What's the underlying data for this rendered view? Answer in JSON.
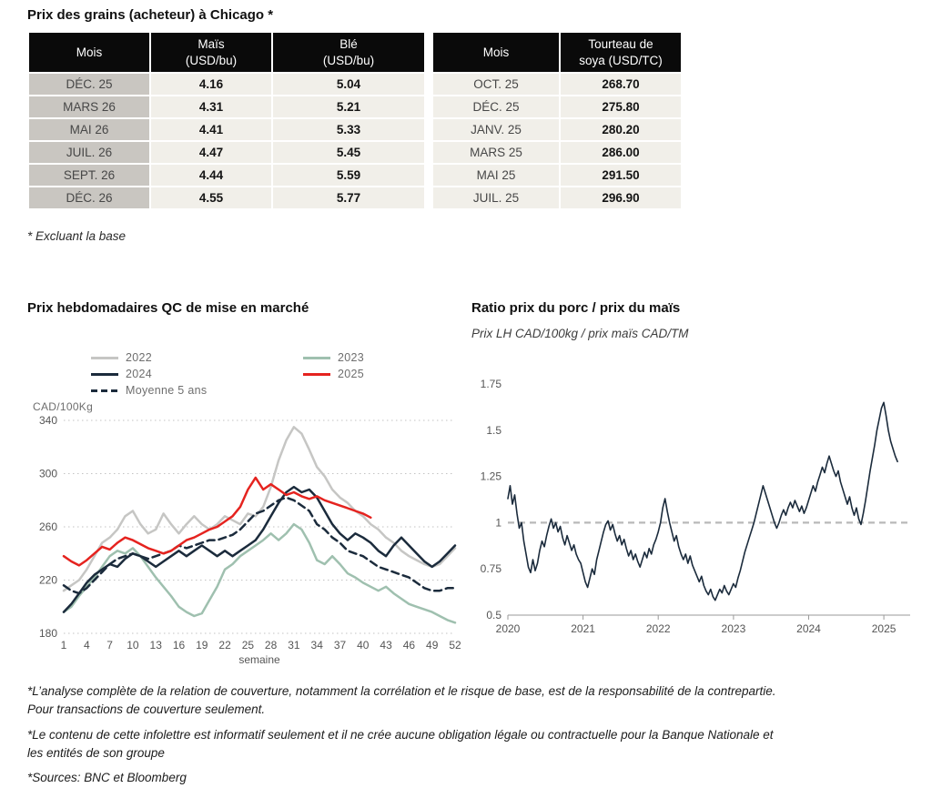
{
  "page": {
    "title": "Prix des grains (acheteur) à Chicago *",
    "table_note": "* Excluant la base",
    "footnotes": [
      "*L’analyse complète de la relation de couverture, notamment la corrélation et le risque de base, est de la responsabilité de la contrepartie. Pour transactions de couverture seulement.",
      "*Le contenu de cette infolettre est informatif seulement et il ne crée aucune obligation légale ou contractuelle pour la Banque Nationale et les entités de son groupe",
      "*Sources: BNC et Bloomberg"
    ]
  },
  "colors": {
    "header_bg": "#0a0a0a",
    "month_col_bg": "#c9c6c1",
    "cell_bg": "#f1efe9",
    "navy": "#1b2b3c",
    "red": "#e5231f",
    "gray_series": "#c6c6c4",
    "green_series": "#9fc0af",
    "reference_gray": "#b9b9b9"
  },
  "grains_table": {
    "headers": [
      {
        "lines": [
          "Mois"
        ]
      },
      {
        "lines": [
          "Maïs",
          "(USD/bu)"
        ]
      },
      {
        "lines": [
          "Blé",
          "(USD/bu)"
        ]
      },
      {
        "lines": [
          "Mois"
        ]
      },
      {
        "lines": [
          "Tourteau de",
          "soya (USD/TC)"
        ]
      }
    ],
    "rows": [
      [
        "DÉC. 25",
        "4.16",
        "5.04",
        "OCT. 25",
        "268.70"
      ],
      [
        "MARS 26",
        "4.31",
        "5.21",
        "DÉC. 25",
        "275.80"
      ],
      [
        "MAI 26",
        "4.41",
        "5.33",
        "JANV. 25",
        "280.20"
      ],
      [
        "JUIL. 26",
        "4.47",
        "5.45",
        "MARS 25",
        "286.00"
      ],
      [
        "SEPT. 26",
        "4.44",
        "5.59",
        "MAI 25",
        "291.50"
      ],
      [
        "DÉC. 26",
        "4.55",
        "5.77",
        "JUIL. 25",
        "296.90"
      ]
    ]
  },
  "chart_data": [
    {
      "type": "line",
      "title": "Prix hebdomadaires QC de mise en marché",
      "ylabel": "CAD/100Kg",
      "xlabel": "semaine",
      "ylim": [
        180,
        340
      ],
      "yticks": [
        180,
        220,
        260,
        300,
        340
      ],
      "xlim": [
        1,
        52
      ],
      "xticks": [
        1,
        4,
        7,
        10,
        13,
        16,
        19,
        22,
        25,
        28,
        31,
        34,
        37,
        40,
        43,
        46,
        49,
        52
      ],
      "grid": "dotted-horizontal",
      "legend_position": "top-left",
      "legend": [
        {
          "label": "2022",
          "color": "#c6c6c4",
          "dash": false
        },
        {
          "label": "2023",
          "color": "#9fc0af",
          "dash": false
        },
        {
          "label": "2024",
          "color": "#1b2b3c",
          "dash": false
        },
        {
          "label": "2025",
          "color": "#e5231f",
          "dash": false
        },
        {
          "label": "Moyenne 5 ans",
          "color": "#1b2b3c",
          "dash": true
        }
      ],
      "series": [
        {
          "name": "2022",
          "color": "#c6c6c4",
          "dash": false,
          "x_start": 1,
          "x_step": 1,
          "values": [
            212,
            216,
            220,
            228,
            238,
            248,
            252,
            258,
            268,
            272,
            262,
            255,
            258,
            270,
            262,
            255,
            262,
            268,
            262,
            258,
            262,
            268,
            265,
            262,
            270,
            268,
            275,
            290,
            310,
            325,
            335,
            330,
            318,
            305,
            298,
            288,
            282,
            278,
            272,
            268,
            262,
            258,
            252,
            248,
            242,
            238,
            235,
            232,
            230,
            232,
            238,
            244
          ]
        },
        {
          "name": "2023",
          "color": "#9fc0af",
          "dash": false,
          "x_start": 1,
          "x_step": 1,
          "values": [
            196,
            200,
            208,
            215,
            222,
            230,
            238,
            242,
            240,
            244,
            238,
            230,
            222,
            215,
            208,
            200,
            196,
            193,
            195,
            205,
            215,
            228,
            232,
            238,
            242,
            246,
            250,
            255,
            250,
            255,
            262,
            258,
            248,
            235,
            232,
            238,
            232,
            225,
            222,
            218,
            215,
            212,
            215,
            210,
            206,
            202,
            200,
            198,
            196,
            193,
            190,
            188
          ]
        },
        {
          "name": "Moyenne 5 ans",
          "color": "#1b2b3c",
          "dash": true,
          "x_start": 1,
          "x_step": 1,
          "values": [
            216,
            212,
            210,
            214,
            220,
            226,
            232,
            236,
            238,
            240,
            238,
            236,
            238,
            240,
            242,
            246,
            244,
            246,
            248,
            250,
            250,
            252,
            254,
            258,
            264,
            270,
            272,
            276,
            280,
            282,
            280,
            276,
            272,
            262,
            258,
            252,
            248,
            242,
            240,
            238,
            234,
            230,
            228,
            226,
            224,
            222,
            218,
            214,
            212,
            212,
            214,
            214
          ]
        },
        {
          "name": "2024",
          "color": "#1b2b3c",
          "dash": false,
          "x_start": 1,
          "x_step": 1,
          "values": [
            196,
            202,
            210,
            218,
            224,
            228,
            232,
            230,
            236,
            240,
            238,
            234,
            230,
            234,
            238,
            242,
            238,
            242,
            246,
            242,
            238,
            242,
            238,
            242,
            246,
            250,
            258,
            268,
            278,
            286,
            290,
            286,
            288,
            282,
            272,
            262,
            255,
            250,
            255,
            252,
            248,
            242,
            238,
            246,
            252,
            246,
            240,
            234,
            230,
            234,
            240,
            246
          ]
        },
        {
          "name": "2025",
          "color": "#e5231f",
          "dash": false,
          "x_start": 1,
          "x_step": 1,
          "values": [
            238,
            234,
            231,
            235,
            240,
            245,
            243,
            248,
            252,
            250,
            247,
            244,
            242,
            240,
            242,
            246,
            250,
            252,
            255,
            258,
            260,
            264,
            268,
            275,
            288,
            297,
            288,
            292,
            288,
            284,
            286,
            283,
            281,
            283,
            280,
            278,
            276,
            274,
            272,
            270,
            267
          ]
        }
      ]
    },
    {
      "type": "line",
      "title": "Ratio prix du porc / prix du maïs",
      "subtitle": "Prix LH CAD/100kg / prix maïs CAD/TM",
      "ylim": [
        0.5,
        1.75
      ],
      "yticks": [
        0.5,
        0.75,
        1,
        1.25,
        1.5,
        1.75
      ],
      "xlim": [
        2020,
        2025.35
      ],
      "xticks": [
        2020,
        2021,
        2022,
        2023,
        2024,
        2025
      ],
      "reference_line": 1,
      "legend_position": "none",
      "series": [
        {
          "name": "ratio porc/maïs",
          "color": "#1b2b3c",
          "dash": false,
          "width": 1.6,
          "x_start": 2020,
          "x_step": 0.0303,
          "values": [
            1.13,
            1.2,
            1.1,
            1.15,
            1.05,
            0.97,
            1.0,
            0.9,
            0.83,
            0.76,
            0.73,
            0.8,
            0.74,
            0.78,
            0.85,
            0.9,
            0.87,
            0.93,
            0.98,
            1.02,
            0.97,
            1.0,
            0.95,
            0.98,
            0.92,
            0.88,
            0.93,
            0.89,
            0.85,
            0.88,
            0.83,
            0.8,
            0.78,
            0.73,
            0.68,
            0.65,
            0.7,
            0.75,
            0.72,
            0.8,
            0.85,
            0.9,
            0.95,
            0.99,
            1.01,
            0.96,
            0.99,
            0.94,
            0.9,
            0.93,
            0.88,
            0.91,
            0.86,
            0.82,
            0.85,
            0.8,
            0.83,
            0.79,
            0.76,
            0.8,
            0.84,
            0.81,
            0.86,
            0.83,
            0.88,
            0.91,
            0.95,
            1.0,
            1.08,
            1.13,
            1.06,
            1.0,
            0.95,
            0.9,
            0.93,
            0.87,
            0.83,
            0.8,
            0.83,
            0.78,
            0.82,
            0.77,
            0.74,
            0.71,
            0.68,
            0.71,
            0.66,
            0.63,
            0.61,
            0.64,
            0.6,
            0.58,
            0.61,
            0.64,
            0.62,
            0.66,
            0.63,
            0.61,
            0.64,
            0.67,
            0.65,
            0.7,
            0.74,
            0.79,
            0.84,
            0.88,
            0.92,
            0.96,
            1.0,
            1.05,
            1.1,
            1.15,
            1.2,
            1.16,
            1.12,
            1.08,
            1.04,
            1.0,
            0.97,
            1.0,
            1.04,
            1.07,
            1.04,
            1.08,
            1.11,
            1.08,
            1.12,
            1.09,
            1.06,
            1.09,
            1.05,
            1.08,
            1.12,
            1.16,
            1.2,
            1.17,
            1.22,
            1.26,
            1.3,
            1.27,
            1.32,
            1.36,
            1.32,
            1.28,
            1.25,
            1.28,
            1.22,
            1.18,
            1.14,
            1.1,
            1.14,
            1.08,
            1.04,
            1.08,
            1.02,
            0.99,
            1.05,
            1.12,
            1.2,
            1.28,
            1.35,
            1.42,
            1.5,
            1.56,
            1.62,
            1.65,
            1.58,
            1.5,
            1.44,
            1.4,
            1.36,
            1.33
          ]
        }
      ]
    }
  ]
}
